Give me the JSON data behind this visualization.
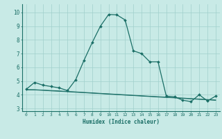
{
  "xlabel": "Humidex (Indice chaleur)",
  "background_color": "#c8eae6",
  "grid_color": "#a0d0cc",
  "line_color": "#1a6e66",
  "xlim": [
    -0.5,
    23.5
  ],
  "ylim": [
    2.8,
    10.6
  ],
  "xticks": [
    0,
    1,
    2,
    3,
    4,
    5,
    6,
    7,
    8,
    9,
    10,
    11,
    12,
    13,
    14,
    15,
    16,
    17,
    18,
    19,
    20,
    21,
    22,
    23
  ],
  "yticks": [
    3,
    4,
    5,
    6,
    7,
    8,
    9,
    10
  ],
  "main_x": [
    0,
    1,
    2,
    3,
    4,
    5,
    6,
    7,
    8,
    9,
    10,
    11,
    12,
    13,
    14,
    15,
    16,
    17,
    18,
    19,
    20,
    21,
    22,
    23
  ],
  "main_y": [
    4.4,
    4.9,
    4.7,
    4.6,
    4.5,
    4.3,
    5.1,
    6.5,
    7.8,
    9.0,
    9.85,
    9.82,
    9.45,
    7.2,
    7.0,
    6.4,
    6.4,
    3.9,
    3.85,
    3.6,
    3.5,
    4.0,
    3.55,
    3.9
  ],
  "flat_x": [
    0,
    1,
    2,
    3,
    4,
    5,
    6,
    7,
    8,
    9,
    10,
    11,
    12,
    13,
    14,
    15,
    16,
    17,
    18,
    19,
    20,
    21,
    22,
    23
  ],
  "flat_y1": [
    4.35,
    4.35,
    4.32,
    4.28,
    4.25,
    4.22,
    4.18,
    4.15,
    4.11,
    4.08,
    4.04,
    4.01,
    3.97,
    3.94,
    3.9,
    3.87,
    3.83,
    3.8,
    3.77,
    3.73,
    3.7,
    3.66,
    3.63,
    3.59
  ],
  "flat_y2": [
    4.38,
    4.37,
    4.34,
    4.31,
    4.28,
    4.24,
    4.21,
    4.17,
    4.14,
    4.1,
    4.07,
    4.03,
    4.0,
    3.96,
    3.93,
    3.89,
    3.86,
    3.83,
    3.79,
    3.76,
    3.72,
    3.69,
    3.65,
    3.62
  ]
}
